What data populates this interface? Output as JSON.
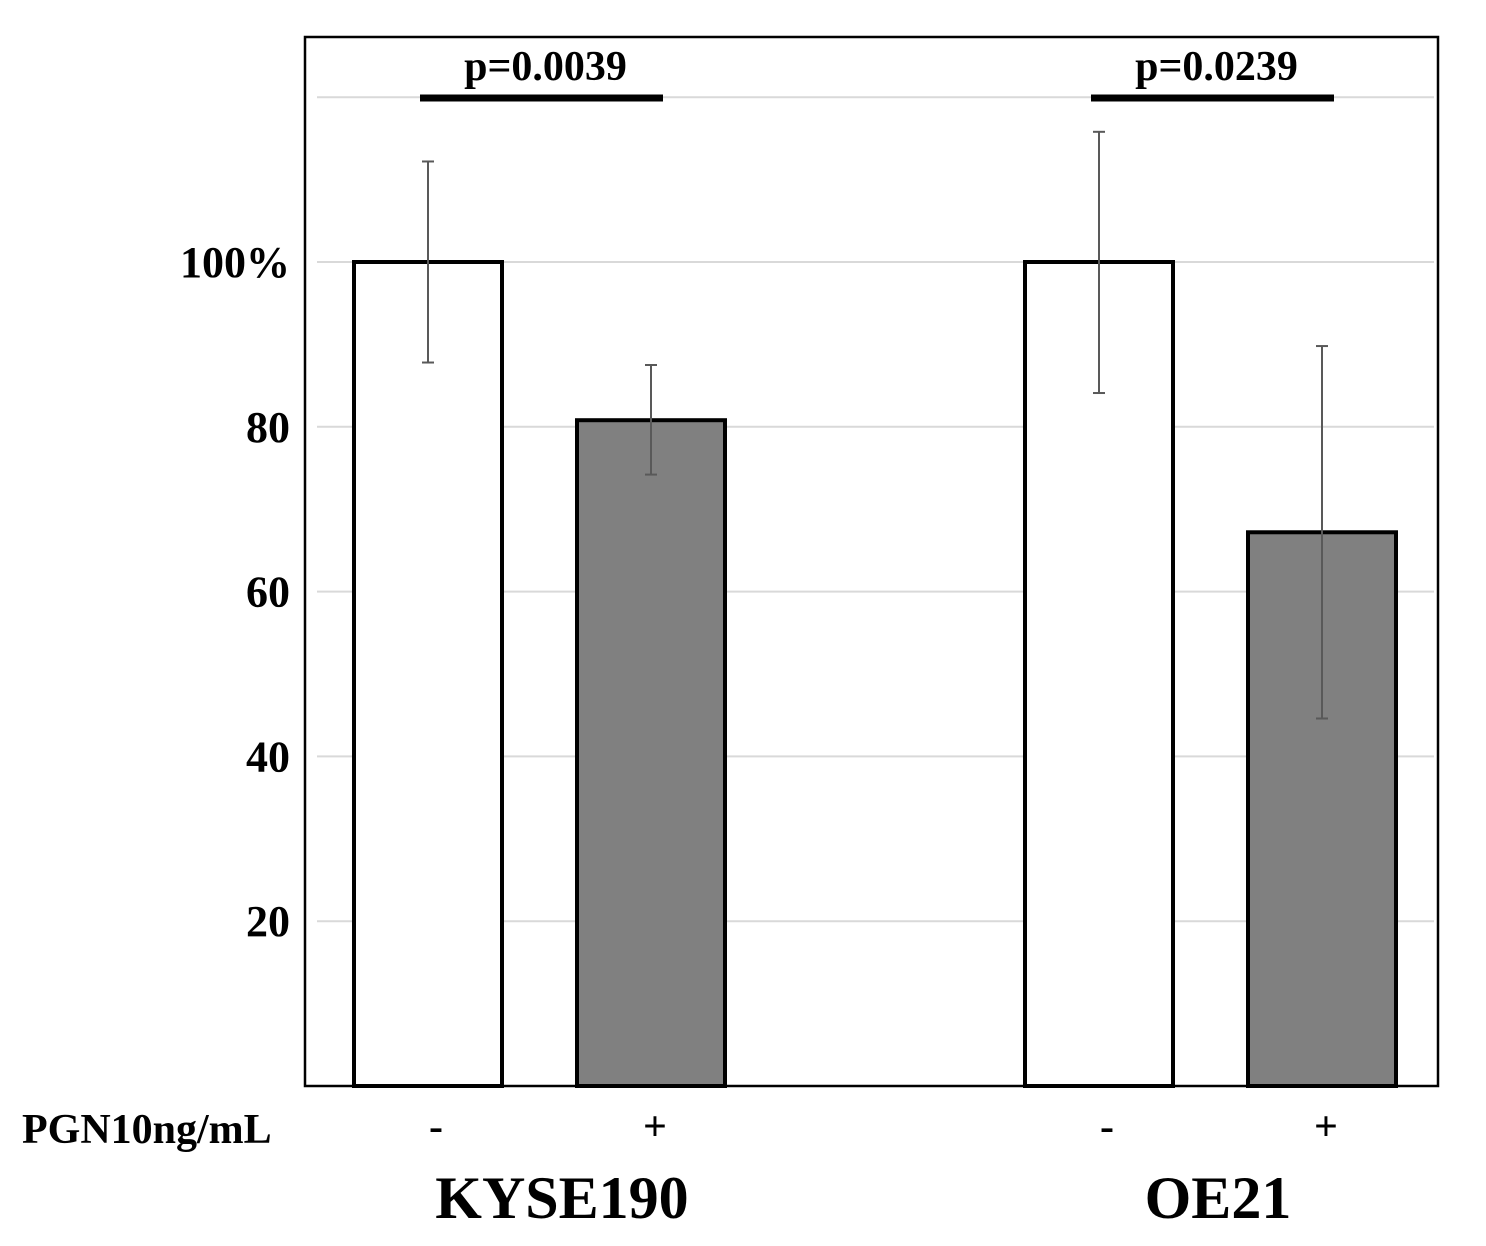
{
  "chart_data": {
    "type": "bar",
    "title": "",
    "xlabel": "",
    "ylabel": "",
    "ylim": [
      0,
      125
    ],
    "y_ticks": [
      20,
      40,
      60,
      80,
      100
    ],
    "y_tick_labels": [
      "20",
      "40",
      "60",
      "80",
      "100%"
    ],
    "grid": true,
    "treatment_label": "PGN10ng/mL",
    "groups": [
      {
        "name": "KYSE190",
        "bars": [
          {
            "treatment": "-",
            "value": 100,
            "err_high": 112.2,
            "err_low": 87.8,
            "color": "#ffffff"
          },
          {
            "treatment": "+",
            "value": 80.8,
            "err_high": 87.5,
            "err_low": 74.2,
            "color": "#808080"
          }
        ],
        "significance": "p=0.0039"
      },
      {
        "name": "OE21",
        "bars": [
          {
            "treatment": "-",
            "value": 100,
            "err_high": 115.8,
            "err_low": 84.1,
            "color": "#ffffff"
          },
          {
            "treatment": "+",
            "value": 67.2,
            "err_high": 89.8,
            "err_low": 44.6,
            "color": "#808080"
          }
        ],
        "significance": "p=0.0239"
      }
    ]
  }
}
